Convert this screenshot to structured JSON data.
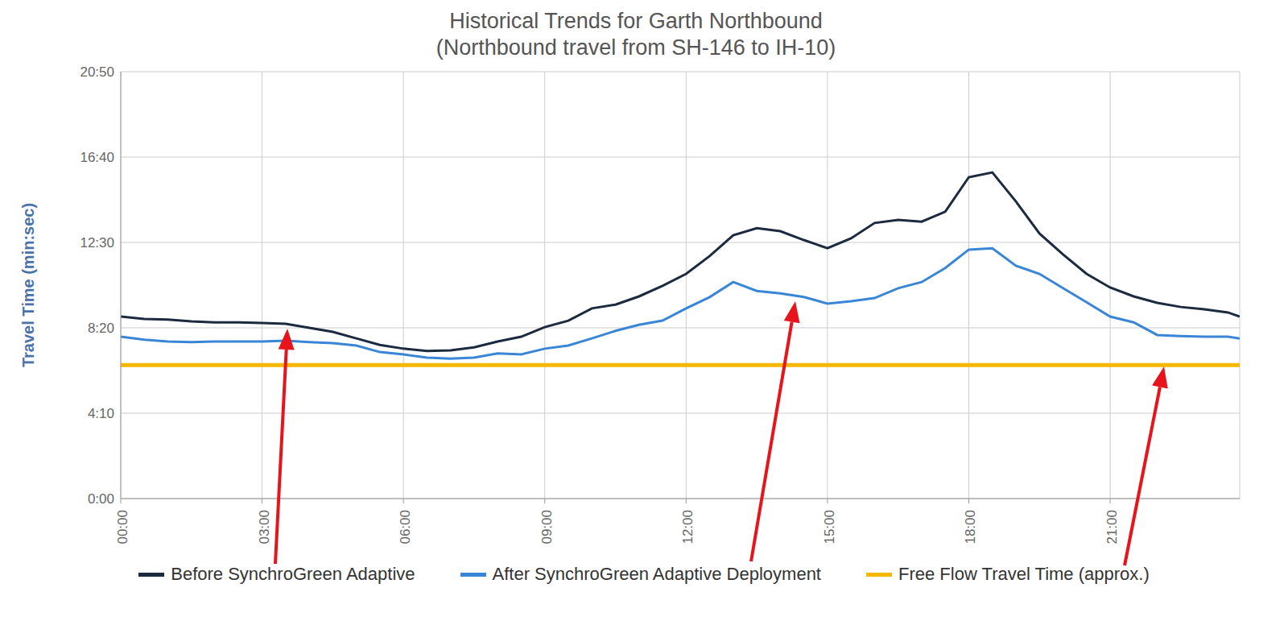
{
  "chart_data": {
    "type": "line",
    "title": "Historical Trends for Garth Northbound",
    "subtitle": "(Northbound travel from SH-146 to IH-10)",
    "y_label": "Travel Time (min:sec)",
    "x": [
      0,
      0.5,
      1,
      1.5,
      2,
      2.5,
      3,
      3.5,
      4,
      4.5,
      5,
      5.5,
      6,
      6.5,
      7,
      7.5,
      8,
      8.5,
      9,
      9.5,
      10,
      10.5,
      11,
      11.5,
      12,
      12.5,
      13,
      13.5,
      14,
      14.5,
      15,
      15.5,
      16,
      16.5,
      17,
      17.5,
      18,
      18.5,
      19,
      19.5,
      20,
      20.5,
      21,
      21.5,
      22,
      22.5,
      23,
      23.5,
      23.75
    ],
    "xlim": [
      0,
      23.75
    ],
    "xticks": [
      {
        "value": 0,
        "label": "00:00"
      },
      {
        "value": 3,
        "label": "03:00"
      },
      {
        "value": 6,
        "label": "06:00"
      },
      {
        "value": 9,
        "label": "09:00"
      },
      {
        "value": 12,
        "label": "12:00"
      },
      {
        "value": 15,
        "label": "15:00"
      },
      {
        "value": 18,
        "label": "18:00"
      },
      {
        "value": 21,
        "label": "21:00"
      }
    ],
    "ylim": [
      0,
      1250
    ],
    "yticks": [
      {
        "value": 0,
        "label": "0:00"
      },
      {
        "value": 250,
        "label": "4:10"
      },
      {
        "value": 500,
        "label": "8:20"
      },
      {
        "value": 750,
        "label": "12:30"
      },
      {
        "value": 1000,
        "label": "16:40"
      },
      {
        "value": 1250,
        "label": "20:50"
      }
    ],
    "grid": true,
    "legend": "bottom",
    "series": [
      {
        "name": "Before SynchroGreen Adaptive",
        "color": "#1b2a3e",
        "values": [
          533,
          526,
          524,
          519,
          516,
          516,
          514,
          512,
          500,
          488,
          469,
          450,
          439,
          432,
          434,
          443,
          460,
          474,
          502,
          521,
          557,
          568,
          592,
          623,
          658,
          710,
          771,
          792,
          783,
          757,
          733,
          762,
          807,
          816,
          811,
          840,
          941,
          955,
          870,
          776,
          715,
          658,
          618,
          592,
          573,
          561,
          554,
          545,
          533
        ]
      },
      {
        "name": "After SynchroGreen Adaptive Deployment",
        "color": "#3a86d6",
        "values": [
          474,
          465,
          460,
          458,
          460,
          460,
          460,
          462,
          458,
          455,
          448,
          429,
          422,
          413,
          410,
          413,
          425,
          422,
          439,
          448,
          469,
          491,
          509,
          521,
          557,
          590,
          634,
          608,
          601,
          590,
          571,
          578,
          587,
          616,
          634,
          675,
          729,
          733,
          682,
          658,
          616,
          575,
          533,
          516,
          479,
          476,
          474,
          474,
          469
        ]
      },
      {
        "name": "Free Flow Travel Time (approx.)",
        "color": "#f5b700",
        "values": [
          391,
          391,
          391,
          391,
          391,
          391,
          391,
          391,
          391,
          391,
          391,
          391,
          391,
          391,
          391,
          391,
          391,
          391,
          391,
          391,
          391,
          391,
          391,
          391,
          391,
          391,
          391,
          391,
          391,
          391,
          391,
          391,
          391,
          391,
          391,
          391,
          391,
          391,
          391,
          391,
          391,
          391,
          391,
          391,
          391,
          391,
          391,
          391,
          391
        ]
      }
    ]
  }
}
